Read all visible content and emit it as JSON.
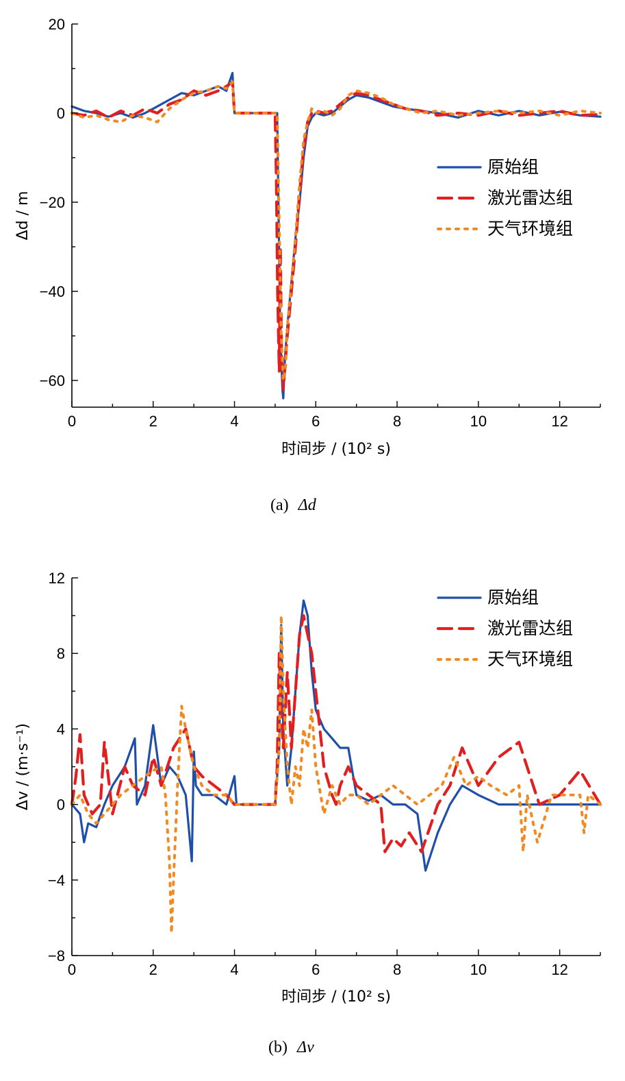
{
  "chart_data": [
    {
      "type": "line",
      "panel": "a",
      "caption_prefix": "(a)",
      "caption_var": "Δd",
      "xlabel": "时间步 / (10² s)",
      "ylabel": "Δd / m",
      "xlim": [
        0,
        13
      ],
      "ylim": [
        -66,
        20
      ],
      "xticks": [
        0,
        2,
        4,
        6,
        8,
        10,
        12
      ],
      "yticks": [
        -60,
        -40,
        -20,
        0,
        20
      ],
      "ytick_labels": [
        "−60",
        "−40",
        "−20",
        "0",
        "20"
      ],
      "legend_position": "right-middle",
      "series": [
        {
          "name": "原始组",
          "color": "#1f4fa8",
          "style": "solid",
          "x": [
            0,
            0.3,
            0.6,
            0.9,
            1.2,
            1.5,
            1.8,
            2.1,
            2.4,
            2.7,
            3.0,
            3.3,
            3.6,
            3.8,
            3.95,
            4.0,
            4.05,
            4.5,
            5.05,
            5.08,
            5.12,
            5.15,
            5.18,
            5.2,
            5.24,
            5.3,
            5.4,
            5.5,
            5.6,
            5.7,
            5.8,
            5.9,
            6.0,
            6.2,
            6.4,
            6.6,
            6.8,
            7.0,
            7.3,
            7.6,
            7.9,
            8.2,
            8.6,
            9.0,
            9.5,
            10.0,
            10.5,
            11.0,
            11.5,
            12.0,
            12.5,
            13.0
          ],
          "y": [
            1.5,
            0.5,
            0,
            -0.8,
            0,
            -1,
            0,
            1.5,
            3,
            4.5,
            4,
            5,
            6,
            5,
            9,
            0,
            0,
            0,
            0,
            -20,
            -45,
            -55,
            -62,
            -64,
            -55,
            -48,
            -38,
            -28,
            -20,
            -10,
            -3,
            -1,
            0,
            -0.5,
            0,
            1.5,
            3,
            4,
            3.5,
            2.5,
            1.5,
            1,
            0.5,
            0,
            -1,
            0.5,
            -0.5,
            0.5,
            -0.5,
            0.3,
            -0.5,
            -0.8
          ]
        },
        {
          "name": "激光雷达组",
          "color": "#e02020",
          "style": "dashed",
          "x": [
            0,
            0.3,
            0.6,
            0.9,
            1.2,
            1.5,
            1.8,
            2.1,
            2.4,
            2.7,
            3.0,
            3.3,
            3.6,
            3.8,
            3.95,
            4.0,
            4.05,
            4.5,
            5.0,
            5.03,
            5.06,
            5.1,
            5.13,
            5.16,
            5.2,
            5.3,
            5.4,
            5.5,
            5.6,
            5.7,
            5.8,
            5.9,
            6.0,
            6.2,
            6.4,
            6.6,
            6.8,
            7.0,
            7.3,
            7.6,
            7.9,
            8.2,
            8.6,
            9.0,
            9.5,
            10.0,
            10.5,
            11.0,
            11.5,
            12.0,
            12.5,
            13.0
          ],
          "y": [
            0,
            -0.5,
            0.5,
            -1,
            0.5,
            -0.5,
            1,
            0,
            2,
            3,
            5,
            4,
            5,
            6,
            7,
            0,
            0,
            0,
            0,
            -15,
            -40,
            -58,
            -30,
            -55,
            -62,
            -50,
            -40,
            -30,
            -18,
            -8,
            -2,
            0,
            0.5,
            0,
            0.5,
            2,
            3.5,
            4.5,
            4,
            3,
            2,
            1,
            0.5,
            -0.5,
            0,
            -0.5,
            0.5,
            -0.5,
            0,
            0.5,
            -0.5,
            -0.3
          ]
        },
        {
          "name": "天气环境组",
          "color": "#f08a24",
          "style": "dotted",
          "x": [
            0,
            0.3,
            0.6,
            0.9,
            1.2,
            1.5,
            1.8,
            2.1,
            2.4,
            2.7,
            3.0,
            3.3,
            3.6,
            3.8,
            3.95,
            4.0,
            4.05,
            4.5,
            5.05,
            5.1,
            5.15,
            5.2,
            5.25,
            5.3,
            5.4,
            5.5,
            5.6,
            5.7,
            5.8,
            5.9,
            6.0,
            6.2,
            6.4,
            6.6,
            6.8,
            7.0,
            7.3,
            7.6,
            7.9,
            8.2,
            8.6,
            9.0,
            9.5,
            10.0,
            10.5,
            11.0,
            11.5,
            12.0,
            12.5,
            13.0
          ],
          "y": [
            0,
            -1,
            -0.5,
            -1.5,
            -2,
            -0.5,
            -1,
            -2,
            1,
            3,
            4.5,
            5,
            6,
            5.5,
            7,
            0,
            0,
            0,
            0,
            -25,
            -50,
            -60,
            -58,
            -48,
            -38,
            -28,
            -16,
            -6,
            -2,
            1,
            0,
            0.5,
            -0.5,
            1,
            4,
            5,
            4.5,
            3.5,
            2,
            1,
            0,
            0.5,
            -0.5,
            0,
            0.5,
            0,
            0.5,
            -0.5,
            0.5,
            0
          ]
        }
      ]
    },
    {
      "type": "line",
      "panel": "b",
      "caption_prefix": "(b)",
      "caption_var": "Δv",
      "xlabel": "时间步 / (10² s)",
      "ylabel": "Δv / (m·s⁻¹)",
      "xlim": [
        0,
        13
      ],
      "ylim": [
        -8,
        12
      ],
      "xticks": [
        0,
        2,
        4,
        6,
        8,
        10,
        12
      ],
      "yticks": [
        -8,
        -4,
        0,
        4,
        8,
        12
      ],
      "ytick_labels": [
        "−8",
        "−4",
        "0",
        "4",
        "8",
        "12"
      ],
      "legend_position": "top-right",
      "series": [
        {
          "name": "原始组",
          "color": "#1f4fa8",
          "style": "solid",
          "x": [
            0,
            0.2,
            0.3,
            0.4,
            0.6,
            0.8,
            1.0,
            1.3,
            1.55,
            1.6,
            1.8,
            2.0,
            2.2,
            2.4,
            2.6,
            2.8,
            2.95,
            3.0,
            3.05,
            3.2,
            3.5,
            3.8,
            4.0,
            4.05,
            4.5,
            5.0,
            5.1,
            5.15,
            5.2,
            5.3,
            5.4,
            5.5,
            5.6,
            5.7,
            5.8,
            5.9,
            6.0,
            6.2,
            6.4,
            6.6,
            6.8,
            7.0,
            7.3,
            7.6,
            7.9,
            8.2,
            8.5,
            8.7,
            9.0,
            9.3,
            9.6,
            10.0,
            10.5,
            11.0,
            11.5,
            12.0,
            12.5,
            13.0
          ],
          "y": [
            0,
            -0.5,
            -2,
            -1,
            -1.2,
            0,
            1,
            2,
            3.5,
            0,
            1,
            4.2,
            1,
            2,
            1.5,
            0.5,
            -3,
            2.8,
            1,
            0.5,
            0.5,
            0,
            1.5,
            0,
            0,
            0,
            3,
            9.5,
            4,
            1,
            3,
            6,
            9,
            10.8,
            10,
            7,
            5,
            4,
            3.5,
            3,
            3,
            0.5,
            0.2,
            0.5,
            0,
            0,
            -0.5,
            -3.5,
            -1.5,
            0,
            1,
            0.5,
            0,
            0,
            0,
            0,
            0,
            0
          ]
        },
        {
          "name": "激光雷达组",
          "color": "#e02020",
          "style": "dashed",
          "x": [
            0,
            0.1,
            0.2,
            0.3,
            0.5,
            0.7,
            0.8,
            1.0,
            1.3,
            1.5,
            1.8,
            2.0,
            2.2,
            2.5,
            2.8,
            3.0,
            3.2,
            3.5,
            3.8,
            4.0,
            4.05,
            4.5,
            5.0,
            5.05,
            5.1,
            5.15,
            5.2,
            5.3,
            5.4,
            5.5,
            5.6,
            5.7,
            5.8,
            5.9,
            6.0,
            6.2,
            6.4,
            6.5,
            6.6,
            6.8,
            7.0,
            7.3,
            7.6,
            7.7,
            7.9,
            8.1,
            8.3,
            8.6,
            9.0,
            9.3,
            9.6,
            10.0,
            10.5,
            11.0,
            11.5,
            12.0,
            12.5,
            13.0
          ],
          "y": [
            0,
            1.5,
            3.7,
            0.5,
            -0.5,
            0,
            3.3,
            -0.5,
            2,
            1,
            0.5,
            2.5,
            1,
            3,
            4,
            2,
            1.5,
            1,
            0.5,
            0,
            0,
            0,
            0,
            2,
            8,
            5,
            3,
            7,
            3,
            6,
            9,
            10,
            9,
            8,
            6,
            2,
            0.5,
            0,
            1,
            2,
            1,
            0.5,
            0,
            -2.5,
            -1.8,
            -2.2,
            -1.5,
            -2.5,
            0,
            1,
            3,
            1,
            2.5,
            3.3,
            0,
            0.5,
            1.8,
            0
          ]
        },
        {
          "name": "天气环境组",
          "color": "#f08a24",
          "style": "dotted",
          "x": [
            0,
            0.2,
            0.4,
            0.6,
            0.8,
            1.0,
            1.2,
            1.5,
            1.8,
            2.0,
            2.2,
            2.3,
            2.4,
            2.45,
            2.5,
            2.6,
            2.7,
            2.8,
            2.9,
            3.0,
            3.2,
            3.5,
            3.8,
            4.0,
            4.05,
            4.5,
            5.0,
            5.1,
            5.15,
            5.2,
            5.3,
            5.4,
            5.5,
            5.6,
            5.7,
            5.8,
            5.9,
            6.0,
            6.2,
            6.4,
            6.6,
            6.8,
            7.0,
            7.3,
            7.6,
            7.9,
            8.2,
            8.5,
            8.8,
            9.1,
            9.4,
            9.7,
            10.0,
            10.3,
            10.7,
            11.0,
            11.1,
            11.2,
            11.45,
            11.8,
            12.2,
            12.5,
            12.6,
            12.7,
            13.0
          ],
          "y": [
            0,
            0.5,
            -0.5,
            -1,
            -0.5,
            0,
            0.5,
            1,
            1.5,
            1.8,
            2,
            0.5,
            -3,
            -6.8,
            -4,
            1,
            5.2,
            4,
            3,
            2,
            1,
            0.5,
            0.5,
            0,
            0,
            0,
            0,
            3,
            10,
            6,
            2,
            0,
            2,
            1,
            4,
            3,
            5,
            2,
            -0.5,
            1,
            0,
            0.5,
            0.5,
            0,
            0.5,
            1,
            0.5,
            0,
            0.5,
            1,
            2.5,
            1,
            1.5,
            1,
            0.5,
            1,
            -2.5,
            0.5,
            -2,
            0.5,
            0.5,
            0.5,
            -1.5,
            0.5,
            0
          ]
        }
      ]
    }
  ]
}
